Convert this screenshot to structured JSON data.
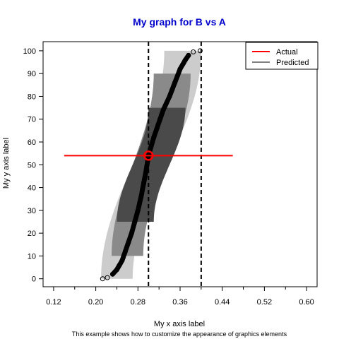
{
  "chart_data": {
    "type": "scatter",
    "title": "My graph for B vs A",
    "xlabel": "My x axis label",
    "ylabel": "My y axis label",
    "subtitle": "This example shows how to customize the appearance of graphics elements",
    "xlim": [
      0.1,
      0.62
    ],
    "ylim": [
      -3.5,
      104
    ],
    "x_ticks": [
      0.12,
      0.2,
      0.28,
      0.36,
      0.44,
      0.52,
      0.6
    ],
    "x_tick_labels": [
      "0.12",
      "0.20",
      "0.28",
      "0.36",
      "0.44",
      "0.52",
      "0.60"
    ],
    "x_minor_ticks": [
      0.16,
      0.24,
      0.32,
      0.4,
      0.48,
      0.56
    ],
    "y_ticks": [
      0,
      10,
      20,
      30,
      40,
      50,
      60,
      70,
      80,
      90,
      100
    ],
    "y_tick_labels": [
      "0",
      "10",
      "20",
      "30",
      "40",
      "50",
      "60",
      "70",
      "80",
      "90",
      "100"
    ],
    "grid": false,
    "legend": {
      "placement": "top-right",
      "entries": [
        {
          "label": "Actual",
          "color": "#ff0000"
        },
        {
          "label": "Predicted",
          "color": "#000000"
        }
      ]
    },
    "bands": [
      {
        "y_range": [
          0,
          100
        ],
        "x_lower": [
          0.21,
          0.33
        ],
        "x_upper": [
          0.27,
          0.4
        ],
        "color": "#cccccc"
      },
      {
        "y_range": [
          10,
          90
        ],
        "x_lower": [
          0.23,
          0.31
        ],
        "x_upper": [
          0.29,
          0.38
        ],
        "color": "#8a8a8a"
      },
      {
        "y_range": [
          25,
          75
        ],
        "x_lower": [
          0.24,
          0.3
        ],
        "x_upper": [
          0.31,
          0.37
        ],
        "color": "#4a4a4a"
      }
    ],
    "predicted_curve": {
      "x": [
        0.213,
        0.222,
        0.232,
        0.24,
        0.245,
        0.25,
        0.256,
        0.262,
        0.268,
        0.274,
        0.28,
        0.286,
        0.291,
        0.296,
        0.3,
        0.305,
        0.31,
        0.316,
        0.322,
        0.328,
        0.334,
        0.34,
        0.345,
        0.35,
        0.355,
        0.36,
        0.365,
        0.37,
        0.376,
        0.385,
        0.398
      ],
      "y": [
        0,
        0.5,
        2,
        4,
        6,
        8,
        12,
        16,
        20,
        25,
        30,
        36,
        42,
        48,
        54,
        58,
        62,
        66,
        70,
        74,
        77,
        80,
        83,
        86,
        89,
        92,
        94,
        96,
        98,
        99.5,
        100
      ]
    },
    "actual_point": {
      "x": 0.3,
      "y": 54,
      "x_range": [
        0.14,
        0.46
      ],
      "color": "#ff0000"
    },
    "reference_lines": {
      "x": [
        0.3,
        0.4
      ],
      "style": "dashed"
    }
  }
}
